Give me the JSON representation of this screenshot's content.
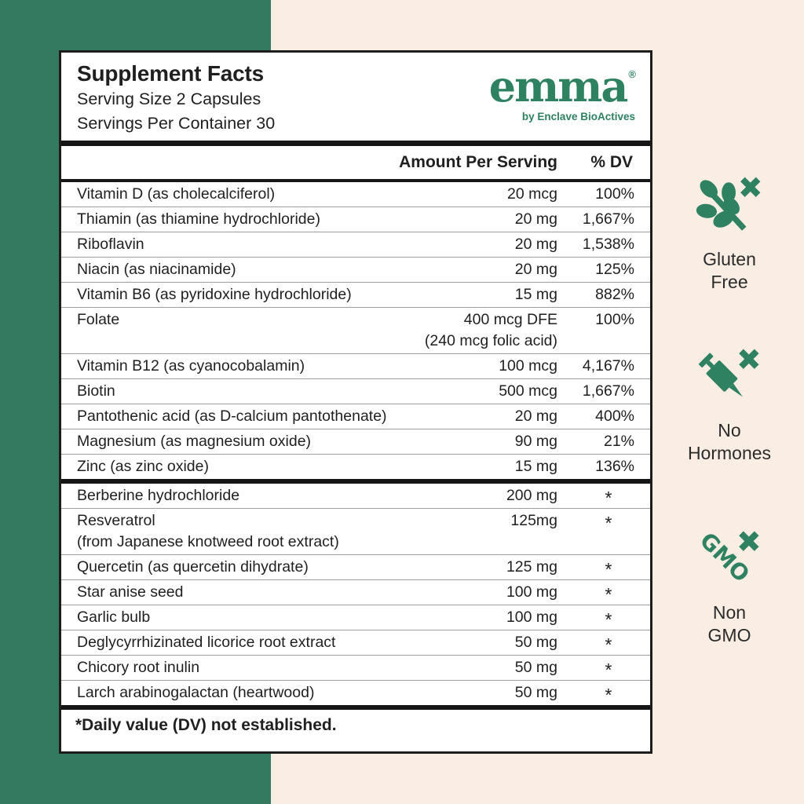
{
  "label": {
    "title": "Supplement Facts",
    "serving_size": "Serving Size 2 Capsules",
    "servings_per_container": "Servings Per Container 30",
    "brand": {
      "name": "emma",
      "registered": "®",
      "byline": "by Enclave BioActives"
    },
    "columns": {
      "amount": "Amount Per Serving",
      "dv": "% DV"
    },
    "sections": [
      {
        "rows": [
          {
            "name": "Vitamin D (as cholecalciferol)",
            "amount": "20 mcg",
            "dv": "100%"
          },
          {
            "name": "Thiamin (as thiamine hydrochloride)",
            "amount": "20 mg",
            "dv": "1,667%"
          },
          {
            "name": "Riboflavin",
            "amount": "20 mg",
            "dv": "1,538%"
          },
          {
            "name": "Niacin (as niacinamide)",
            "amount": "20 mg",
            "dv": "125%"
          },
          {
            "name": "Vitamin B6 (as pyridoxine hydrochloride)",
            "amount": "15 mg",
            "dv": "882%"
          },
          {
            "name": "Folate",
            "amount": "400 mcg DFE",
            "amount2": "(240 mcg folic acid)",
            "dv": "100%"
          },
          {
            "name": "Vitamin B12 (as cyanocobalamin)",
            "amount": "100 mcg",
            "dv": "4,167%"
          },
          {
            "name": "Biotin",
            "amount": "500 mcg",
            "dv": "1,667%"
          },
          {
            "name": "Pantothenic acid (as D-calcium pantothenate)",
            "amount": "20 mg",
            "dv": "400%"
          },
          {
            "name": "Magnesium (as magnesium oxide)",
            "amount": "90 mg",
            "dv": "21%"
          },
          {
            "name": "Zinc (as zinc oxide)",
            "amount": "15 mg",
            "dv": "136%"
          }
        ]
      },
      {
        "rows": [
          {
            "name": "Berberine hydrochloride",
            "amount": "200 mg",
            "dv": "*"
          },
          {
            "name": "Resveratrol",
            "name2": "(from Japanese knotweed root extract)",
            "amount": "125mg",
            "dv": "*"
          },
          {
            "name": "Quercetin (as quercetin dihydrate)",
            "amount": "125 mg",
            "dv": "*"
          },
          {
            "name": "Star anise seed",
            "amount": "100 mg",
            "dv": "*"
          },
          {
            "name": "Garlic bulb",
            "amount": "100 mg",
            "dv": "*"
          },
          {
            "name": "Deglycyrrhizinated licorice root extract",
            "amount": "50 mg",
            "dv": "*"
          },
          {
            "name": "Chicory root inulin",
            "amount": "50 mg",
            "dv": "*"
          },
          {
            "name": "Larch arabinogalactan (heartwood)",
            "amount": "50 mg",
            "dv": "*"
          }
        ]
      }
    ],
    "footnote": "*Daily value (DV) not established."
  },
  "badges": [
    {
      "name": "gluten-free",
      "lines": [
        "Gluten",
        "Free"
      ]
    },
    {
      "name": "no-hormones",
      "lines": [
        "No",
        "Hormones"
      ]
    },
    {
      "name": "non-gmo",
      "lines": [
        "Non",
        "GMO"
      ],
      "icon_text": "GMO"
    }
  ],
  "colors": {
    "background_green": "#337A60",
    "background_cream": "#FAEDE3",
    "card_white": "#FFFFFF",
    "brand_green": "#2E8161",
    "text_dark": "#1E1F1E",
    "divider_thin": "#9BA09C",
    "divider_thick": "#161616"
  }
}
